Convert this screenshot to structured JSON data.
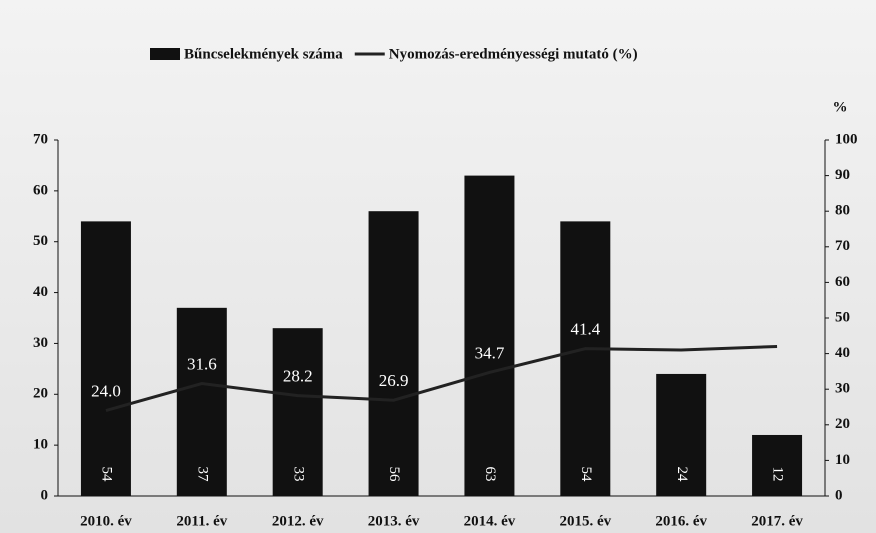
{
  "chart_data": {
    "type": "bar-line",
    "categories": [
      "2010. év",
      "2011. év",
      "2012. év",
      "2013. év",
      "2014. év",
      "2015. év",
      "2016. év",
      "2017. év"
    ],
    "series": [
      {
        "name": "Bűncselekmények száma",
        "type": "bar",
        "color": "#111111",
        "values": [
          54,
          37,
          33,
          56,
          63,
          54,
          24,
          12
        ]
      },
      {
        "name": "Nyomozás-eredményességi mutató (%)",
        "type": "line",
        "axis": "y2",
        "color": "#222222",
        "values": [
          24.0,
          31.6,
          28.2,
          26.9,
          34.7,
          41.4,
          41,
          42
        ],
        "value_labels": [
          "24.0",
          "31.6",
          "28.2",
          "26.9",
          "34.7",
          "41.4",
          null,
          null
        ]
      }
    ],
    "ylim": [
      0,
      70
    ],
    "yticks": [
      0,
      10,
      20,
      30,
      40,
      50,
      60,
      70
    ],
    "y2lim": [
      0,
      100
    ],
    "y2ticks": [
      0,
      10,
      20,
      30,
      40,
      50,
      60,
      70,
      80,
      90,
      100
    ],
    "y2label": "%",
    "legend": "top",
    "grid": false
  }
}
